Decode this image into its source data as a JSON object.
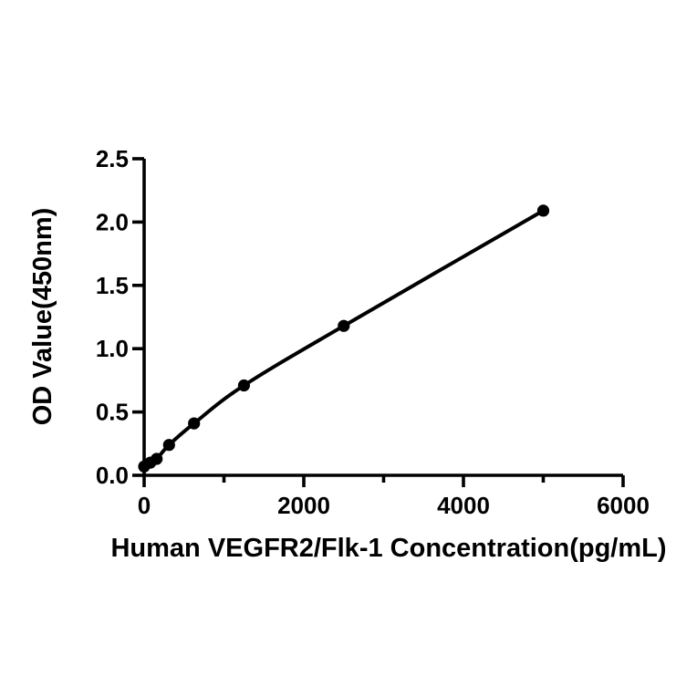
{
  "figure": {
    "background": "#ffffff",
    "foreground": "#000000"
  },
  "chart_data": {
    "type": "scatter",
    "title": "",
    "xlabel": "Human VEGFR2/Flk-1 Concentration(pg/mL)",
    "ylabel": "OD Value(450nm)",
    "x": [
      0,
      78.1,
      156.2,
      312.5,
      625,
      1250,
      2500,
      5000
    ],
    "y": [
      0.07,
      0.1,
      0.13,
      0.24,
      0.41,
      0.71,
      1.18,
      2.09
    ],
    "xlim": [
      0,
      6000
    ],
    "ylim": [
      0,
      2.5
    ],
    "x_major_ticks": [
      0,
      2000,
      4000,
      6000
    ],
    "x_minor_ticks": [
      1000,
      3000,
      5000
    ],
    "y_major_ticks": [
      0,
      0.5,
      1,
      1.5,
      2,
      2.5
    ],
    "x_tick_labels": [
      "0",
      "2000",
      "4000",
      "6000"
    ],
    "y_tick_labels": [
      "0.0",
      "0.5",
      "1.0",
      "1.5",
      "2.0",
      "2.5"
    ],
    "line_color": "#000000",
    "marker_color": "#000000",
    "marker": "filled-circle",
    "curve": "smooth-through-points",
    "grid": false,
    "legend": "none"
  }
}
